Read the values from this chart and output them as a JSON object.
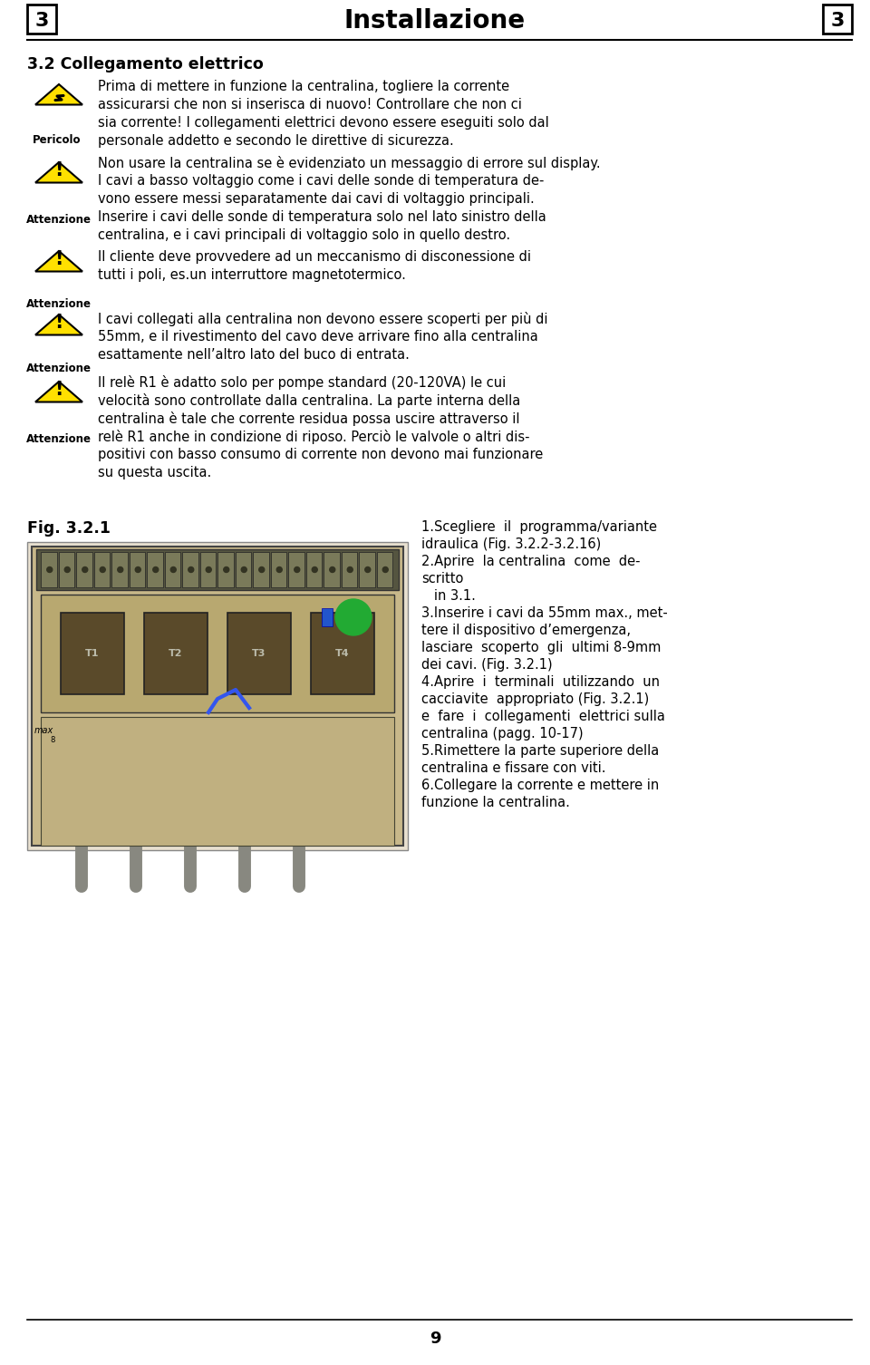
{
  "title": "Installazione",
  "page_num": "3",
  "bg_color": "#ffffff",
  "section_title": "3.2 Collegamento elettrico",
  "pericolo_label": "Pericolo",
  "attenzione_label": "Attenzione",
  "p1_lines": [
    "Prima di mettere in funzione la centralina, togliere la corrente",
    "assicurarsi che non si inserisca di nuovo! Controllare che non ci",
    "sia corrente! I collegamenti elettrici devono essere eseguiti solo dal",
    "personale addetto e secondo le direttive di sicurezza."
  ],
  "p2_lines": [
    "Non usare la centralina se è evidenziato un messaggio di errore sul display.",
    "I cavi a basso voltaggio come i cavi delle sonde di temperatura de-",
    "vono essere messi separatamente dai cavi di voltaggio principali.",
    "Inserire i cavi delle sonde di temperatura solo nel lato sinistro della",
    "centralina, e i cavi principali di voltaggio solo in quello destro."
  ],
  "p3_lines": [
    "Il cliente deve provvedere ad un meccanismo di disconessione di",
    "tutti i poli, es.un interruttore magnetotermico."
  ],
  "p4_lines": [
    "I cavi collegati alla centralina non devono essere scoperti per più di",
    "55mm, e il rivestimento del cavo deve arrivare fino alla centralina",
    "esattamente nell’altro lato del buco di entrata."
  ],
  "p5_lines": [
    "Il relè R1 è adatto solo per pompe standard (20-120VA) le cui",
    "velocità sono controllate dalla centralina. La parte interna della",
    "centralina è tale che corrente residua possa uscire attraverso il",
    "relè R1 anche in condizione di riposo. Perciò le valvole o altri dis-",
    "positivi con basso consumo di corrente non devono mai funzionare",
    "su questa uscita."
  ],
  "fig_label": "Fig. 3.2.1",
  "steps_lines": [
    "1.Scegliere  il  programma/variante",
    "idraulica (Fig. 3.2.2-3.2.16)",
    "2.Aprire  la centralina  come  de-",
    "scritto",
    "   in 3.1.",
    "3.Inserire i cavi da 55mm max., met-",
    "tere il dispositivo d’emergenza,",
    "lasciare  scoperto  gli  ultimi 8-9mm",
    "dei cavi. (Fig. 3.2.1)",
    "4.Aprire  i  terminali  utilizzando  un",
    "cacciavite  appropriato (Fig. 3.2.1)",
    "e  fare  i  collegamenti  elettrici sulla",
    "centralina (pagg. 10-17)",
    "5.Rimettere la parte superiore della",
    "centralina e fissare con viti.",
    "6.Collegare la corrente e mettere in",
    "funzione la centralina."
  ],
  "page_num_bottom": "9"
}
